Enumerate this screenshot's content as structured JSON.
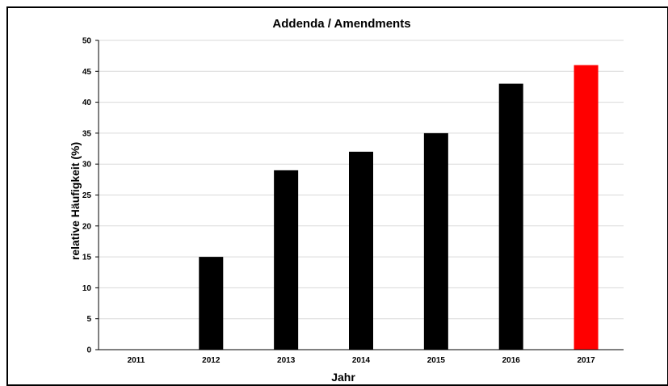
{
  "chart_data": {
    "type": "bar",
    "title": "Addenda / Amendments",
    "xlabel": "Jahr",
    "ylabel": "relative Häufigkeit (%)",
    "categories": [
      "2011",
      "2012",
      "2013",
      "2014",
      "2015",
      "2016",
      "2017"
    ],
    "values": [
      0,
      15,
      29,
      32,
      35,
      43,
      46
    ],
    "ylim": [
      0,
      50
    ],
    "yticks": [
      0,
      5,
      10,
      15,
      20,
      25,
      30,
      35,
      40,
      45,
      50
    ],
    "grid": true,
    "legend": "none",
    "colors": {
      "default_bar": "#000000",
      "highlight_bar": "#ff0000",
      "highlight_category": "2017",
      "grid": "#d9d9d9",
      "axis": "#000000"
    }
  }
}
